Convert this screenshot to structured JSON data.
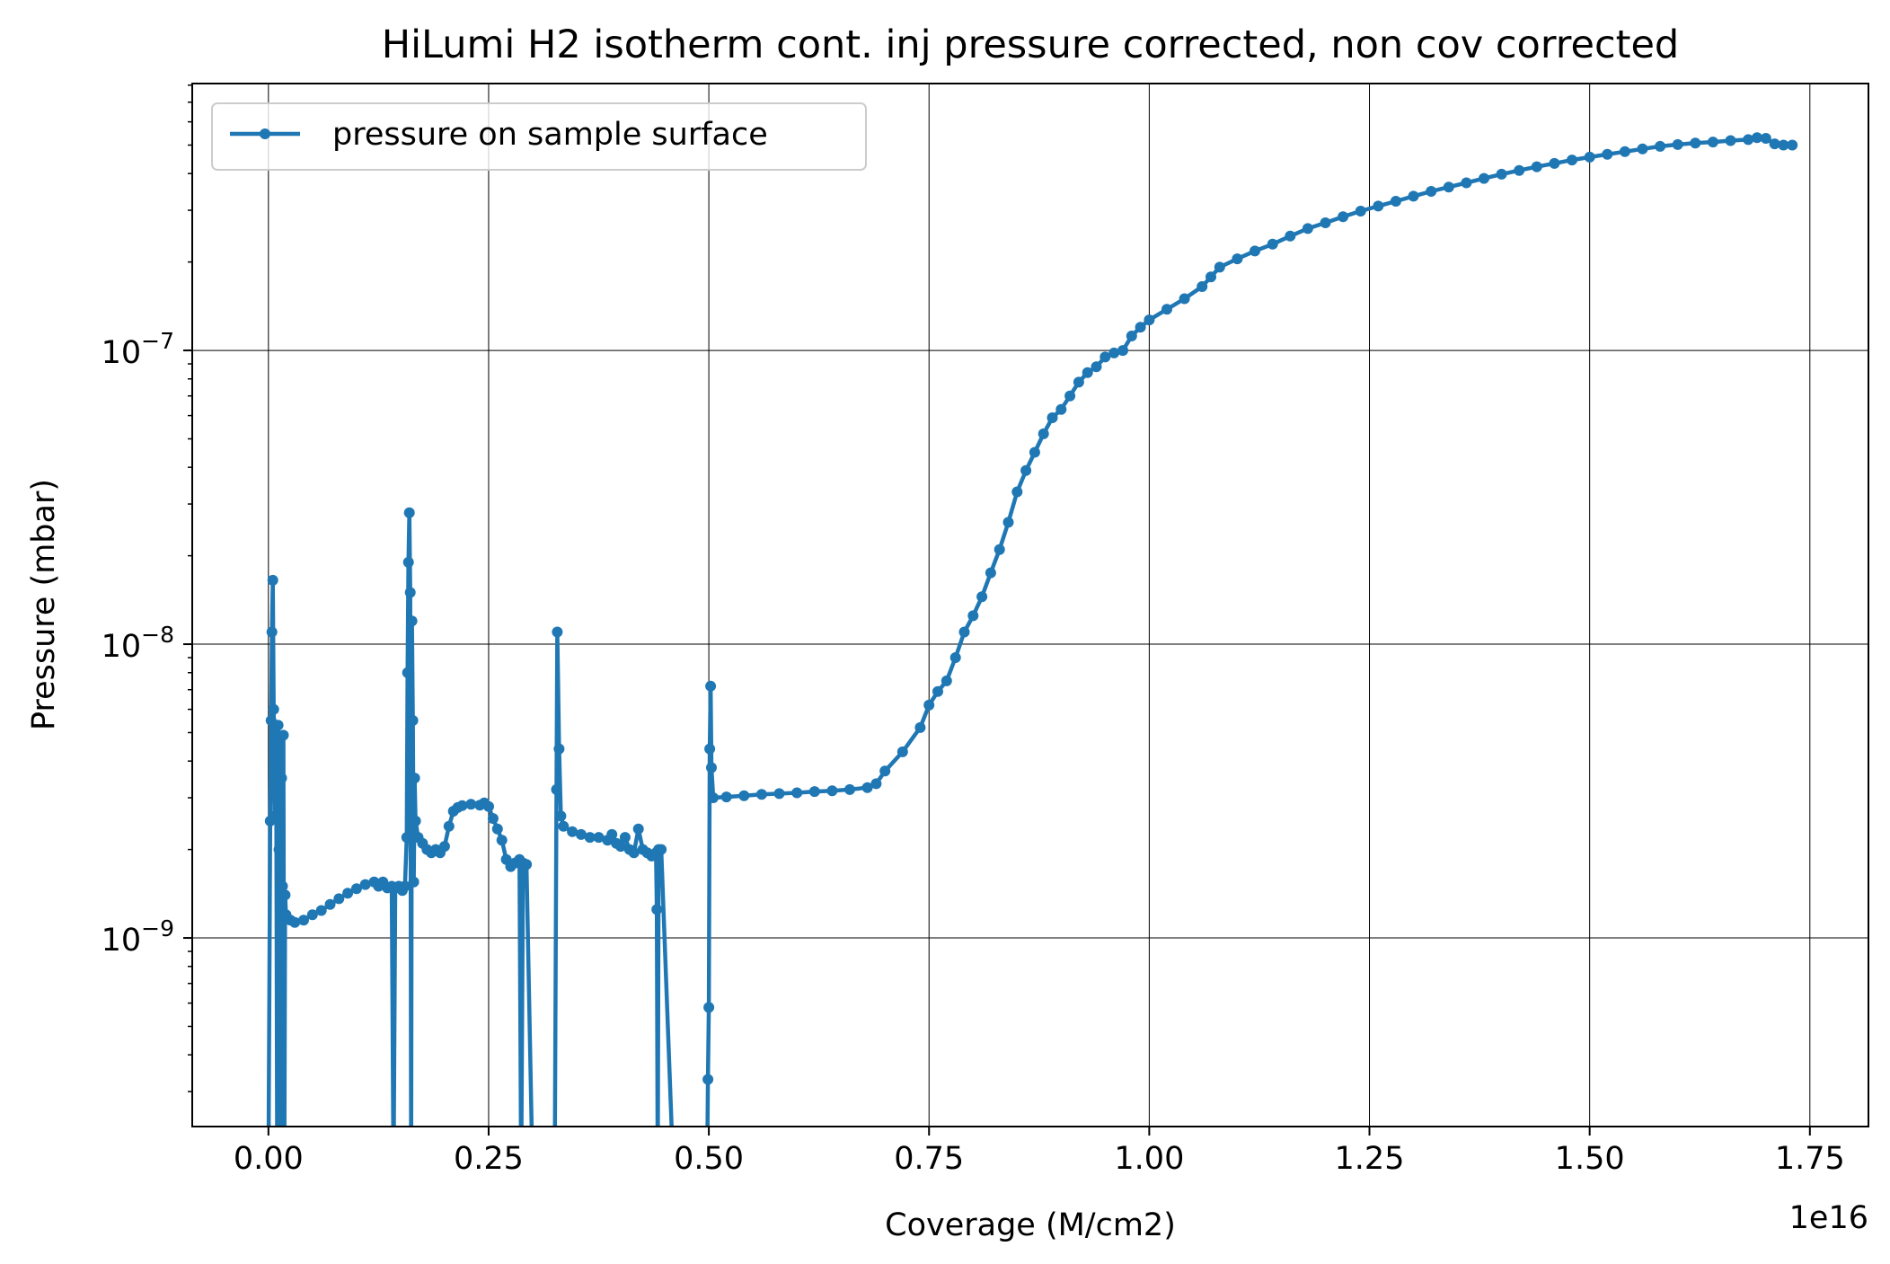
{
  "chart_data": {
    "type": "line",
    "title": "HiLumi H2 isotherm cont. inj pressure corrected, non cov corrected",
    "xlabel": "Coverage (M/cm2)",
    "ylabel": "Pressure (mbar)",
    "x_offset_label": "1e16",
    "x_scale": "linear",
    "y_scale": "log",
    "xlim": [
      -0.0865,
      1.8165
    ],
    "ylim": [
      2.28e-10,
      8.1e-07
    ],
    "grid": true,
    "legend_position": "upper-left",
    "x_ticks": [
      {
        "value": 0.0,
        "label": "0.00"
      },
      {
        "value": 0.25,
        "label": "0.25"
      },
      {
        "value": 0.5,
        "label": "0.50"
      },
      {
        "value": 0.75,
        "label": "0.75"
      },
      {
        "value": 1.0,
        "label": "1.00"
      },
      {
        "value": 1.25,
        "label": "1.25"
      },
      {
        "value": 1.5,
        "label": "1.50"
      },
      {
        "value": 1.75,
        "label": "1.75"
      }
    ],
    "y_ticks": [
      {
        "value": 1e-09,
        "mantissa": "10",
        "exponent": "−9"
      },
      {
        "value": 1e-08,
        "mantissa": "10",
        "exponent": "−8"
      },
      {
        "value": 1e-07,
        "mantissa": "10",
        "exponent": "−7"
      }
    ],
    "series": [
      {
        "name": "pressure on sample surface",
        "color": "#1f77b4",
        "marker": "dot",
        "points": [
          [
            0.0,
            1e-10
          ],
          [
            0.002,
            2.5e-09
          ],
          [
            0.003,
            5.5e-09
          ],
          [
            0.004,
            1.1e-08
          ],
          [
            0.005,
            1.65e-08
          ],
          [
            0.006,
            6e-09
          ],
          [
            0.007,
            2.6e-09
          ],
          [
            0.008,
            5e-09
          ],
          [
            0.009,
            3e-09
          ],
          [
            0.01,
            1e-10
          ],
          [
            0.011,
            5.3e-09
          ],
          [
            0.012,
            2e-09
          ],
          [
            0.013,
            4.8e-09
          ],
          [
            0.014,
            1e-10
          ],
          [
            0.015,
            3.5e-09
          ],
          [
            0.016,
            1.5e-09
          ],
          [
            0.017,
            4.9e-09
          ],
          [
            0.018,
            1e-10
          ],
          [
            0.019,
            1.4e-09
          ],
          [
            0.02,
            1.2e-09
          ],
          [
            0.025,
            1.15e-09
          ],
          [
            0.03,
            1.13e-09
          ],
          [
            0.04,
            1.15e-09
          ],
          [
            0.05,
            1.2e-09
          ],
          [
            0.06,
            1.24e-09
          ],
          [
            0.07,
            1.3e-09
          ],
          [
            0.08,
            1.36e-09
          ],
          [
            0.09,
            1.42e-09
          ],
          [
            0.1,
            1.47e-09
          ],
          [
            0.11,
            1.52e-09
          ],
          [
            0.12,
            1.55e-09
          ],
          [
            0.125,
            1.5e-09
          ],
          [
            0.13,
            1.55e-09
          ],
          [
            0.135,
            1.48e-09
          ],
          [
            0.14,
            1.5e-09
          ],
          [
            0.142,
            1e-10
          ],
          [
            0.144,
            1.48e-09
          ],
          [
            0.148,
            1.5e-09
          ],
          [
            0.152,
            1.45e-09
          ],
          [
            0.155,
            1.5e-09
          ],
          [
            0.157,
            2.2e-09
          ],
          [
            0.158,
            8e-09
          ],
          [
            0.159,
            1.9e-08
          ],
          [
            0.16,
            2.8e-08
          ],
          [
            0.161,
            1.5e-08
          ],
          [
            0.162,
            1e-10
          ],
          [
            0.163,
            1.2e-08
          ],
          [
            0.164,
            5.5e-09
          ],
          [
            0.165,
            1.55e-09
          ],
          [
            0.166,
            3.5e-09
          ],
          [
            0.167,
            2.5e-09
          ],
          [
            0.17,
            2.2e-09
          ],
          [
            0.175,
            2.1e-09
          ],
          [
            0.18,
            2e-09
          ],
          [
            0.185,
            1.95e-09
          ],
          [
            0.19,
            2e-09
          ],
          [
            0.195,
            1.95e-09
          ],
          [
            0.2,
            2.05e-09
          ],
          [
            0.205,
            2.4e-09
          ],
          [
            0.21,
            2.7e-09
          ],
          [
            0.215,
            2.78e-09
          ],
          [
            0.22,
            2.82e-09
          ],
          [
            0.23,
            2.85e-09
          ],
          [
            0.24,
            2.83e-09
          ],
          [
            0.245,
            2.88e-09
          ],
          [
            0.25,
            2.8e-09
          ],
          [
            0.255,
            2.55e-09
          ],
          [
            0.26,
            2.35e-09
          ],
          [
            0.265,
            2.15e-09
          ],
          [
            0.27,
            1.85e-09
          ],
          [
            0.275,
            1.75e-09
          ],
          [
            0.28,
            1.8e-09
          ],
          [
            0.285,
            1.85e-09
          ],
          [
            0.287,
            1e-10
          ],
          [
            0.289,
            1.8e-09
          ],
          [
            0.293,
            1.78e-09
          ],
          [
            0.3,
            1e-10
          ],
          [
            0.325,
            1e-10
          ],
          [
            0.327,
            3.2e-09
          ],
          [
            0.328,
            1.1e-08
          ],
          [
            0.33,
            4.4e-09
          ],
          [
            0.332,
            2.6e-09
          ],
          [
            0.335,
            2.4e-09
          ],
          [
            0.345,
            2.3e-09
          ],
          [
            0.355,
            2.25e-09
          ],
          [
            0.365,
            2.2e-09
          ],
          [
            0.375,
            2.2e-09
          ],
          [
            0.385,
            2.15e-09
          ],
          [
            0.39,
            2.25e-09
          ],
          [
            0.395,
            2.1e-09
          ],
          [
            0.4,
            2.05e-09
          ],
          [
            0.405,
            2.2e-09
          ],
          [
            0.41,
            2e-09
          ],
          [
            0.415,
            1.95e-09
          ],
          [
            0.42,
            2.35e-09
          ],
          [
            0.425,
            2e-09
          ],
          [
            0.43,
            1.95e-09
          ],
          [
            0.435,
            1.9e-09
          ],
          [
            0.44,
            1.95e-09
          ],
          [
            0.441,
            1.25e-09
          ],
          [
            0.442,
            1e-10
          ],
          [
            0.443,
            2e-09
          ],
          [
            0.446,
            2e-09
          ],
          [
            0.46,
            1e-10
          ],
          [
            0.498,
            1e-10
          ],
          [
            0.499,
            3.3e-10
          ],
          [
            0.5,
            5.8e-10
          ],
          [
            0.501,
            4.4e-09
          ],
          [
            0.502,
            7.2e-09
          ],
          [
            0.503,
            3.8e-09
          ],
          [
            0.505,
            3e-09
          ],
          [
            0.52,
            3.02e-09
          ],
          [
            0.54,
            3.05e-09
          ],
          [
            0.56,
            3.08e-09
          ],
          [
            0.58,
            3.1e-09
          ],
          [
            0.6,
            3.12e-09
          ],
          [
            0.62,
            3.15e-09
          ],
          [
            0.64,
            3.17e-09
          ],
          [
            0.66,
            3.2e-09
          ],
          [
            0.68,
            3.25e-09
          ],
          [
            0.69,
            3.35e-09
          ],
          [
            0.7,
            3.7e-09
          ],
          [
            0.72,
            4.3e-09
          ],
          [
            0.74,
            5.2e-09
          ],
          [
            0.75,
            6.2e-09
          ],
          [
            0.76,
            6.9e-09
          ],
          [
            0.77,
            7.5e-09
          ],
          [
            0.78,
            9e-09
          ],
          [
            0.79,
            1.1e-08
          ],
          [
            0.8,
            1.25e-08
          ],
          [
            0.81,
            1.45e-08
          ],
          [
            0.82,
            1.75e-08
          ],
          [
            0.83,
            2.1e-08
          ],
          [
            0.84,
            2.6e-08
          ],
          [
            0.85,
            3.3e-08
          ],
          [
            0.86,
            3.9e-08
          ],
          [
            0.87,
            4.5e-08
          ],
          [
            0.88,
            5.2e-08
          ],
          [
            0.89,
            5.9e-08
          ],
          [
            0.9,
            6.3e-08
          ],
          [
            0.91,
            7e-08
          ],
          [
            0.92,
            7.8e-08
          ],
          [
            0.93,
            8.4e-08
          ],
          [
            0.94,
            8.8e-08
          ],
          [
            0.95,
            9.5e-08
          ],
          [
            0.96,
            9.8e-08
          ],
          [
            0.97,
            1e-07
          ],
          [
            0.98,
            1.12e-07
          ],
          [
            0.99,
            1.2e-07
          ],
          [
            1.0,
            1.27e-07
          ],
          [
            1.02,
            1.38e-07
          ],
          [
            1.04,
            1.5e-07
          ],
          [
            1.06,
            1.65e-07
          ],
          [
            1.07,
            1.78e-07
          ],
          [
            1.08,
            1.92e-07
          ],
          [
            1.1,
            2.05e-07
          ],
          [
            1.12,
            2.18e-07
          ],
          [
            1.14,
            2.3e-07
          ],
          [
            1.16,
            2.45e-07
          ],
          [
            1.18,
            2.6e-07
          ],
          [
            1.2,
            2.72e-07
          ],
          [
            1.22,
            2.85e-07
          ],
          [
            1.24,
            2.98e-07
          ],
          [
            1.26,
            3.1e-07
          ],
          [
            1.28,
            3.22e-07
          ],
          [
            1.3,
            3.35e-07
          ],
          [
            1.32,
            3.48e-07
          ],
          [
            1.34,
            3.6e-07
          ],
          [
            1.36,
            3.72e-07
          ],
          [
            1.38,
            3.85e-07
          ],
          [
            1.4,
            3.98e-07
          ],
          [
            1.42,
            4.1e-07
          ],
          [
            1.44,
            4.22e-07
          ],
          [
            1.46,
            4.33e-07
          ],
          [
            1.48,
            4.45e-07
          ],
          [
            1.5,
            4.55e-07
          ],
          [
            1.52,
            4.65e-07
          ],
          [
            1.54,
            4.75e-07
          ],
          [
            1.56,
            4.85e-07
          ],
          [
            1.58,
            4.95e-07
          ],
          [
            1.6,
            5.02e-07
          ],
          [
            1.62,
            5.08e-07
          ],
          [
            1.64,
            5.12e-07
          ],
          [
            1.66,
            5.18e-07
          ],
          [
            1.68,
            5.22e-07
          ],
          [
            1.69,
            5.3e-07
          ],
          [
            1.7,
            5.27e-07
          ],
          [
            1.71,
            5.05e-07
          ],
          [
            1.72,
            5e-07
          ],
          [
            1.73,
            5e-07
          ]
        ]
      }
    ]
  }
}
